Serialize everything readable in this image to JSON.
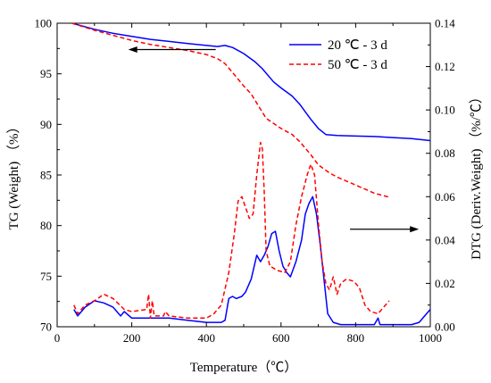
{
  "chart_data": {
    "type": "line",
    "xlabel": "Temperature（℃）",
    "ylabel_left": "TG (Weight) （%）",
    "ylabel_right": "DTG (Deriv.Weight) （%/℃）",
    "xlim": [
      0,
      1000
    ],
    "ylim_left": [
      70,
      100
    ],
    "ylim_right": [
      0,
      0.14
    ],
    "x_ticks": [
      0,
      200,
      400,
      600,
      800,
      1000
    ],
    "y_left_ticks": [
      70,
      75,
      80,
      85,
      90,
      95,
      100
    ],
    "y_right_ticks": [
      0.0,
      0.02,
      0.04,
      0.06,
      0.08,
      0.1,
      0.12,
      0.14
    ],
    "y_right_tick_labels": [
      "0.00",
      "0.02",
      "0.04",
      "0.06",
      "0.08",
      "0.10",
      "0.12",
      "0.14"
    ],
    "grid": false,
    "legend_position": "top-right",
    "series": [
      {
        "name": "20 ℃ - 3 d",
        "color": "#0000ff",
        "dash": "solid",
        "axis": "left",
        "kind": "TG",
        "x": [
          40,
          100,
          150,
          200,
          250,
          300,
          350,
          400,
          430,
          450,
          470,
          500,
          530,
          550,
          580,
          600,
          630,
          650,
          680,
          700,
          720,
          750,
          800,
          850,
          900,
          950,
          1000
        ],
        "y": [
          100,
          99.4,
          99.0,
          98.7,
          98.4,
          98.2,
          98.0,
          97.8,
          97.7,
          97.8,
          97.6,
          97.0,
          96.2,
          95.5,
          94.2,
          93.6,
          92.8,
          92.0,
          90.5,
          89.6,
          89.0,
          88.9,
          88.85,
          88.8,
          88.7,
          88.6,
          88.4
        ]
      },
      {
        "name": "50 ℃ - 3 d",
        "color": "#ff0000",
        "dash": "dashed",
        "axis": "left",
        "kind": "TG",
        "x": [
          40,
          100,
          150,
          200,
          250,
          300,
          350,
          400,
          430,
          450,
          480,
          500,
          520,
          540,
          560,
          600,
          630,
          650,
          680,
          700,
          730,
          750,
          800,
          850,
          890
        ],
        "y": [
          100,
          99.3,
          98.8,
          98.3,
          97.9,
          97.6,
          97.3,
          96.9,
          96.5,
          96.0,
          94.7,
          93.8,
          93.0,
          91.8,
          90.6,
          89.6,
          89.0,
          88.3,
          87.0,
          86.0,
          85.2,
          84.8,
          84.0,
          83.2,
          82.8
        ]
      },
      {
        "name": "20 ℃ - 3 d",
        "color": "#0000ff",
        "dash": "solid",
        "axis": "right",
        "kind": "DTG",
        "x": [
          45,
          55,
          75,
          100,
          125,
          150,
          170,
          180,
          200,
          250,
          300,
          350,
          400,
          440,
          450,
          460,
          470,
          480,
          495,
          505,
          520,
          535,
          545,
          555,
          565,
          575,
          585,
          595,
          605,
          615,
          625,
          640,
          655,
          665,
          675,
          685,
          695,
          705,
          715,
          725,
          740,
          760,
          800,
          850,
          860,
          865,
          870,
          900,
          950,
          970,
          990,
          1000
        ],
        "y": [
          0.008,
          0.005,
          0.009,
          0.012,
          0.011,
          0.009,
          0.005,
          0.007,
          0.004,
          0.004,
          0.004,
          0.003,
          0.002,
          0.002,
          0.003,
          0.013,
          0.014,
          0.013,
          0.014,
          0.016,
          0.022,
          0.033,
          0.03,
          0.033,
          0.037,
          0.043,
          0.044,
          0.035,
          0.028,
          0.025,
          0.023,
          0.03,
          0.04,
          0.052,
          0.057,
          0.06,
          0.052,
          0.038,
          0.022,
          0.006,
          0.002,
          0.001,
          0.001,
          0.001,
          0.004,
          0.001,
          0.001,
          0.001,
          0.001,
          0.002,
          0.006,
          0.008
        ]
      },
      {
        "name": "50 ℃ - 3 d",
        "color": "#ff0000",
        "dash": "dashed",
        "axis": "right",
        "kind": "DTG",
        "x": [
          45,
          55,
          75,
          100,
          125,
          150,
          180,
          200,
          240,
          245,
          250,
          255,
          260,
          285,
          290,
          300,
          350,
          400,
          420,
          440,
          460,
          475,
          485,
          495,
          505,
          515,
          525,
          535,
          545,
          550,
          555,
          560,
          570,
          590,
          610,
          625,
          640,
          655,
          670,
          680,
          690,
          700,
          710,
          720,
          730,
          740,
          750,
          760,
          775,
          795,
          810,
          825,
          840,
          860,
          880,
          890
        ],
        "y": [
          0.01,
          0.006,
          0.01,
          0.012,
          0.015,
          0.013,
          0.008,
          0.007,
          0.008,
          0.015,
          0.004,
          0.012,
          0.005,
          0.005,
          0.007,
          0.005,
          0.004,
          0.004,
          0.006,
          0.01,
          0.025,
          0.043,
          0.058,
          0.06,
          0.055,
          0.05,
          0.052,
          0.07,
          0.085,
          0.082,
          0.062,
          0.035,
          0.028,
          0.026,
          0.025,
          0.03,
          0.047,
          0.06,
          0.07,
          0.075,
          0.07,
          0.048,
          0.03,
          0.02,
          0.017,
          0.023,
          0.015,
          0.02,
          0.022,
          0.021,
          0.018,
          0.01,
          0.007,
          0.006,
          0.01,
          0.012
        ]
      }
    ],
    "annotations": [
      {
        "kind": "arrow",
        "direction": "left",
        "x_from": 425,
        "x_to": 205,
        "axis": "left",
        "y": 97.4,
        "color": "#000000"
      },
      {
        "kind": "arrow",
        "direction": "right",
        "x_from": 785,
        "x_to": 955,
        "axis": "right",
        "y": 0.045,
        "color": "#000000"
      }
    ]
  }
}
